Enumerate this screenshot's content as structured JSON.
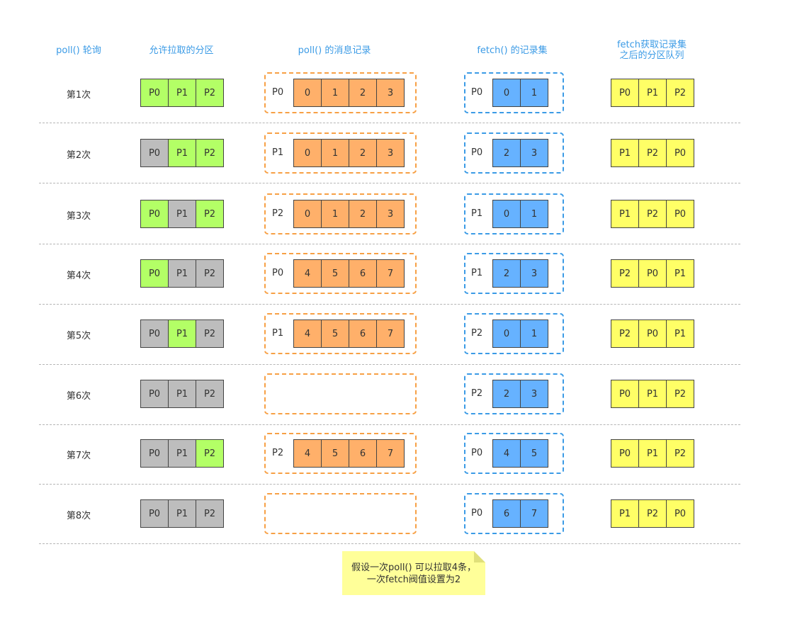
{
  "headers": {
    "poll": "poll() 轮询",
    "allowed": "允许拉取的分区",
    "records": "poll() 的消息记录",
    "fetch": "fetch() 的记录集",
    "queue_line1": "fetch获取记录集",
    "queue_line2": "之后的分区队列"
  },
  "colors": {
    "green": "#b3ff66",
    "gray": "#bdbdbd",
    "orange": "#ffb06a",
    "blue": "#66b2ff",
    "yellow": "#ffff66",
    "header": "#3b9be6",
    "note": "#ffff99"
  },
  "rows": [
    {
      "label": "第1次",
      "allowed": [
        {
          "p": "P0",
          "state": "green"
        },
        {
          "p": "P1",
          "state": "green"
        },
        {
          "p": "P2",
          "state": "green"
        }
      ],
      "poll_partition": "P0",
      "poll_records": [
        "0",
        "1",
        "2",
        "3"
      ],
      "fetch_partition": "P0",
      "fetch_records": [
        "0",
        "1"
      ],
      "queue": [
        "P0",
        "P1",
        "P2"
      ]
    },
    {
      "label": "第2次",
      "allowed": [
        {
          "p": "P0",
          "state": "gray"
        },
        {
          "p": "P1",
          "state": "green"
        },
        {
          "p": "P2",
          "state": "green"
        }
      ],
      "poll_partition": "P1",
      "poll_records": [
        "0",
        "1",
        "2",
        "3"
      ],
      "fetch_partition": "P0",
      "fetch_records": [
        "2",
        "3"
      ],
      "queue": [
        "P1",
        "P2",
        "P0"
      ]
    },
    {
      "label": "第3次",
      "allowed": [
        {
          "p": "P0",
          "state": "green"
        },
        {
          "p": "P1",
          "state": "gray"
        },
        {
          "p": "P2",
          "state": "green"
        }
      ],
      "poll_partition": "P2",
      "poll_records": [
        "0",
        "1",
        "2",
        "3"
      ],
      "fetch_partition": "P1",
      "fetch_records": [
        "0",
        "1"
      ],
      "queue": [
        "P1",
        "P2",
        "P0"
      ]
    },
    {
      "label": "第4次",
      "allowed": [
        {
          "p": "P0",
          "state": "green"
        },
        {
          "p": "P1",
          "state": "gray"
        },
        {
          "p": "P2",
          "state": "gray"
        }
      ],
      "poll_partition": "P0",
      "poll_records": [
        "4",
        "5",
        "6",
        "7"
      ],
      "fetch_partition": "P1",
      "fetch_records": [
        "2",
        "3"
      ],
      "queue": [
        "P2",
        "P0",
        "P1"
      ]
    },
    {
      "label": "第5次",
      "allowed": [
        {
          "p": "P0",
          "state": "gray"
        },
        {
          "p": "P1",
          "state": "green"
        },
        {
          "p": "P2",
          "state": "gray"
        }
      ],
      "poll_partition": "P1",
      "poll_records": [
        "4",
        "5",
        "6",
        "7"
      ],
      "fetch_partition": "P2",
      "fetch_records": [
        "0",
        "1"
      ],
      "queue": [
        "P2",
        "P0",
        "P1"
      ]
    },
    {
      "label": "第6次",
      "allowed": [
        {
          "p": "P0",
          "state": "gray"
        },
        {
          "p": "P1",
          "state": "gray"
        },
        {
          "p": "P2",
          "state": "gray"
        }
      ],
      "poll_partition": "",
      "poll_records": [],
      "fetch_partition": "P2",
      "fetch_records": [
        "2",
        "3"
      ],
      "queue": [
        "P0",
        "P1",
        "P2"
      ]
    },
    {
      "label": "第7次",
      "allowed": [
        {
          "p": "P0",
          "state": "gray"
        },
        {
          "p": "P1",
          "state": "gray"
        },
        {
          "p": "P2",
          "state": "green"
        }
      ],
      "poll_partition": "P2",
      "poll_records": [
        "4",
        "5",
        "6",
        "7"
      ],
      "fetch_partition": "P0",
      "fetch_records": [
        "4",
        "5"
      ],
      "queue": [
        "P0",
        "P1",
        "P2"
      ]
    },
    {
      "label": "第8次",
      "allowed": [
        {
          "p": "P0",
          "state": "gray"
        },
        {
          "p": "P1",
          "state": "gray"
        },
        {
          "p": "P2",
          "state": "gray"
        }
      ],
      "poll_partition": "",
      "poll_records": [],
      "fetch_partition": "P0",
      "fetch_records": [
        "6",
        "7"
      ],
      "queue": [
        "P1",
        "P2",
        "P0"
      ]
    }
  ],
  "note": {
    "line1": "假设一次poll() 可以拉取4条，",
    "line2": "一次fetch阀值设置为2"
  }
}
